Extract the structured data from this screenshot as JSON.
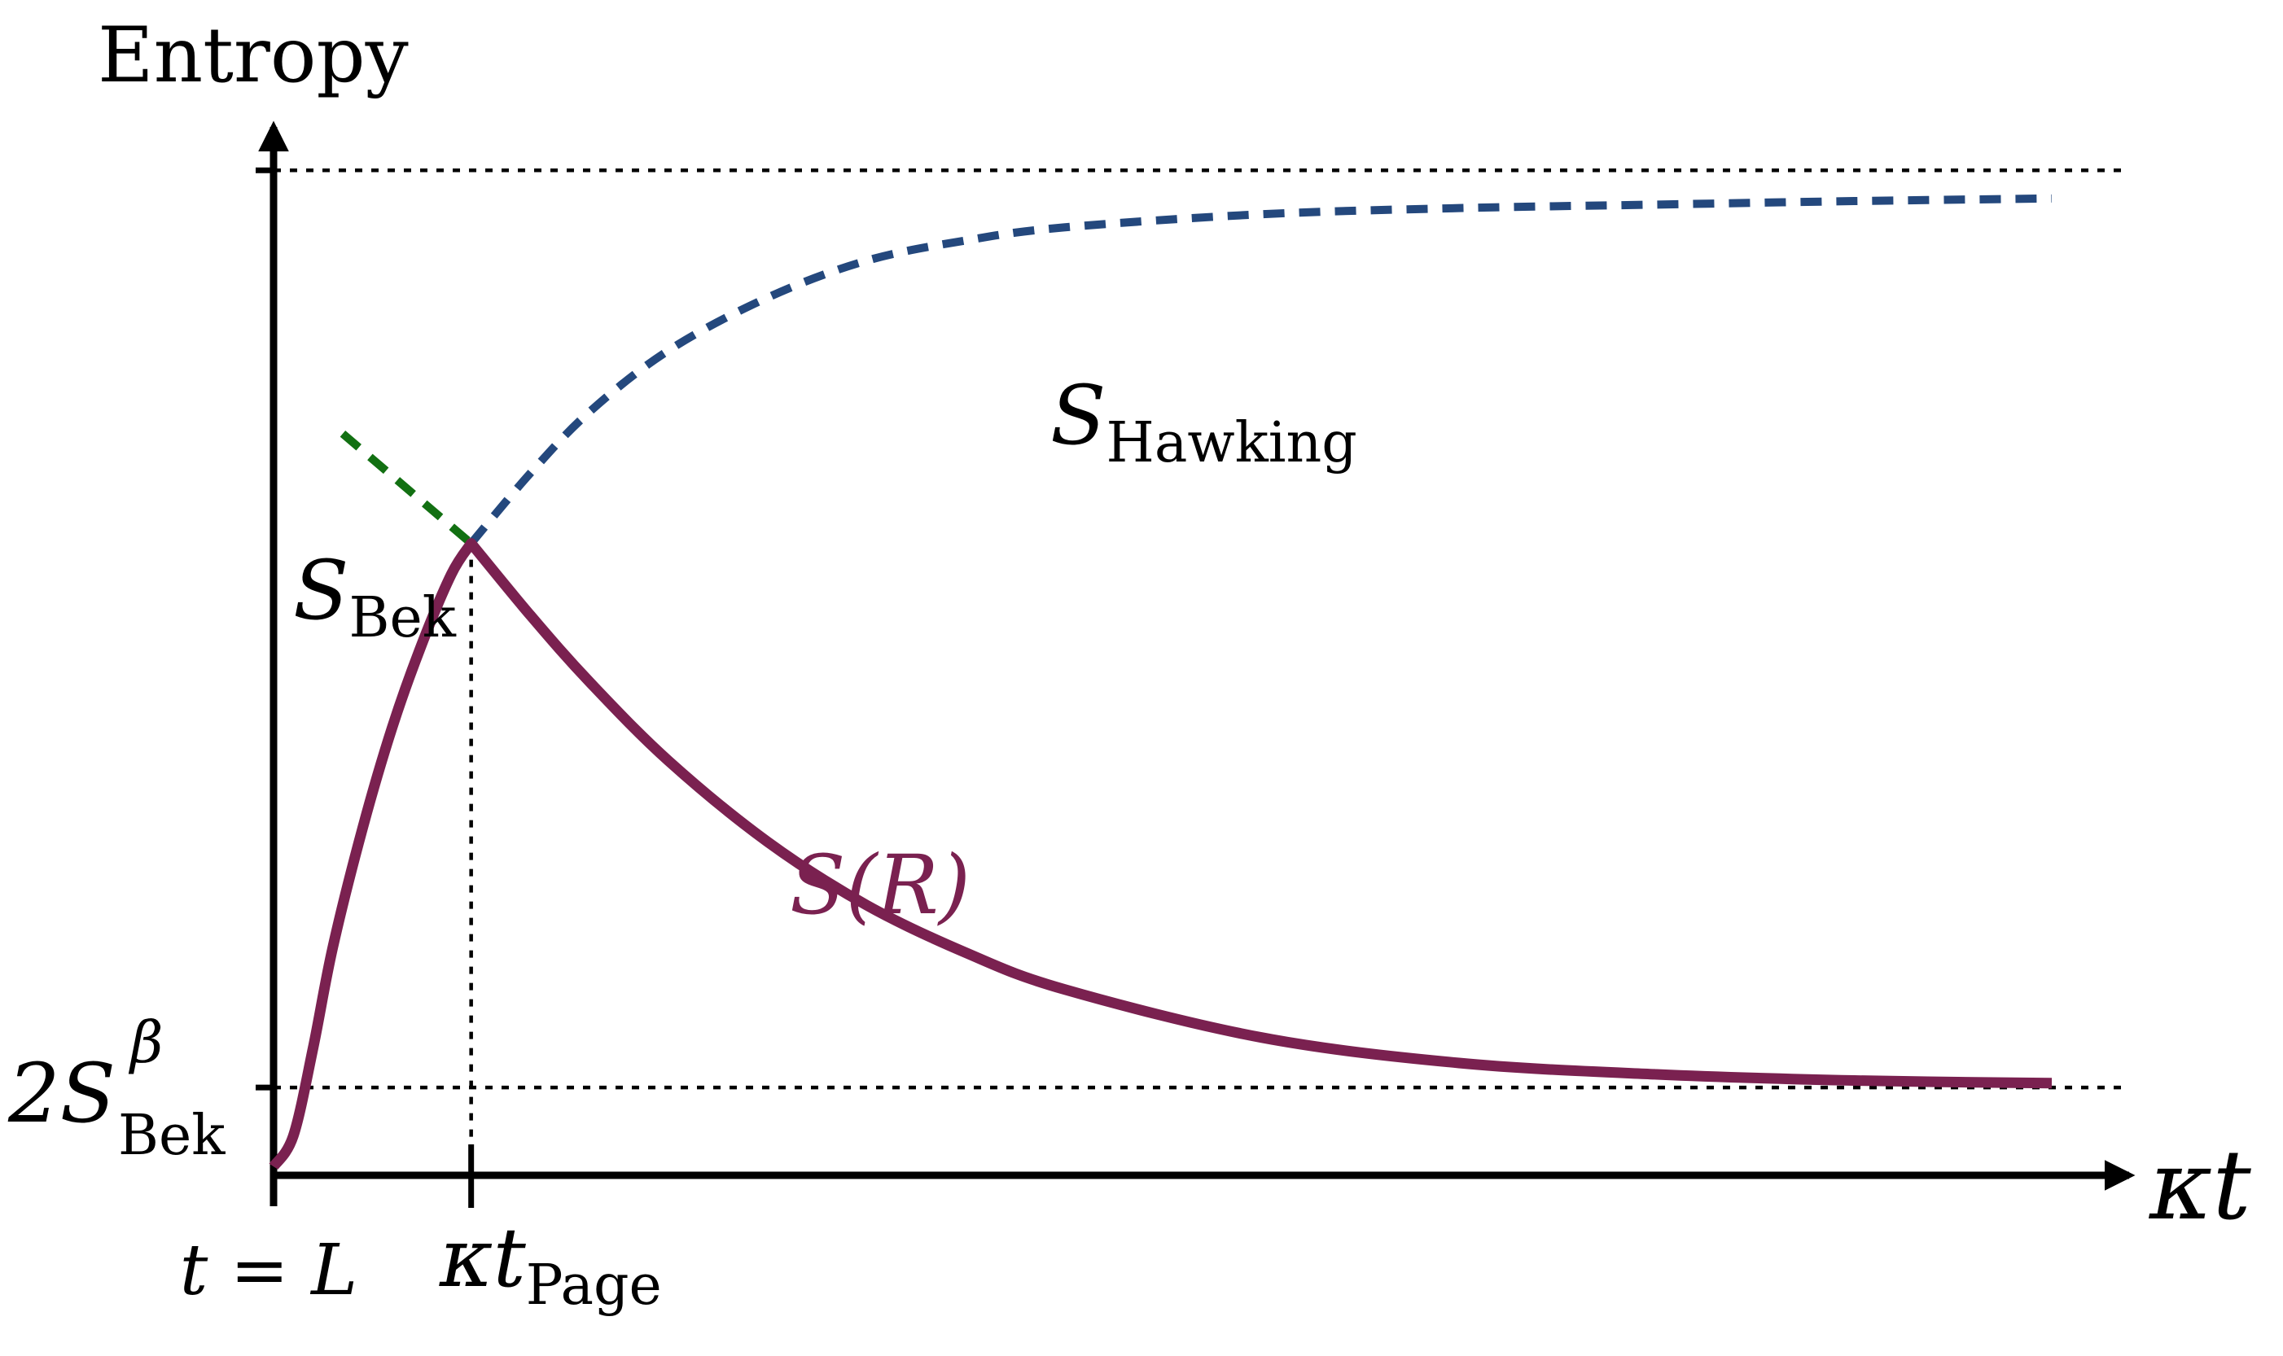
{
  "chart_data": {
    "type": "line",
    "title": "",
    "ylabel": "Entropy",
    "xlabel": "κt",
    "xlim": [
      0,
      9
    ],
    "ylim": [
      0,
      12
    ],
    "reference_lines": {
      "upper": {
        "y": 11.45
      },
      "lower": {
        "y": 1.0
      }
    },
    "x_ticks": [
      {
        "x": 0,
        "label": "t = L"
      },
      {
        "x": 1.0,
        "label_main": "κt",
        "label_sub": "Page"
      }
    ],
    "y_ticks": [
      {
        "y": 1.0,
        "label_main": "2S",
        "label_sup": "β",
        "label_sub": "Bek"
      }
    ],
    "series": [
      {
        "name": "S(R)",
        "label_main": "S(R)",
        "style": "solid",
        "color": "#7a2150",
        "x": [
          0,
          0.1,
          0.2,
          0.3,
          0.45,
          0.6,
          0.75,
          0.9,
          1.0,
          1.3,
          1.6,
          2.0,
          2.5,
          3.0,
          3.5,
          4.0,
          5.0,
          6.0,
          7.0,
          8.0,
          9.0
        ],
        "y": [
          0.1,
          0.45,
          1.45,
          2.6,
          3.95,
          5.1,
          6.05,
          6.85,
          7.2,
          6.38,
          5.62,
          4.72,
          3.8,
          3.08,
          2.54,
          2.12,
          1.57,
          1.28,
          1.15,
          1.08,
          1.05
        ]
      },
      {
        "name": "S_Hawking",
        "label_main": "S",
        "label_sub": "Hawking",
        "style": "dashed",
        "color": "#24487d",
        "x": [
          1.0,
          1.3,
          1.6,
          2.0,
          2.5,
          3.0,
          3.5,
          4.0,
          5.0,
          6.0,
          7.0,
          8.0,
          9.0
        ],
        "y": [
          7.2,
          8.0,
          8.7,
          9.4,
          10.0,
          10.42,
          10.65,
          10.8,
          10.95,
          11.02,
          11.06,
          11.1,
          11.13
        ]
      },
      {
        "name": "S_Bek",
        "label_main": "S",
        "label_sub": "Bek",
        "style": "dashed",
        "color": "#127012",
        "x": [
          0.35,
          1.0
        ],
        "y": [
          8.45,
          7.2
        ]
      }
    ],
    "colors": {
      "axis": "#000000",
      "s_r": "#7a2150",
      "hawking": "#24487d",
      "bek": "#127012"
    }
  }
}
